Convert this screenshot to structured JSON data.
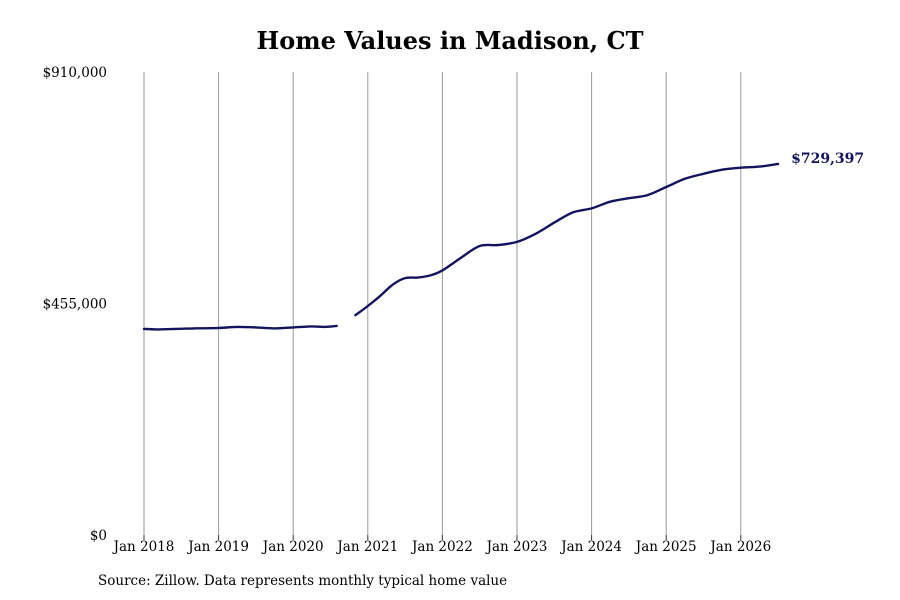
{
  "title": "Home Values in Madison, CT",
  "source": "Source: Zillow. Data represents monthly typical home value",
  "chart_data": {
    "type": "line",
    "title": "Home Values in Madison, CT",
    "xlabel": "",
    "ylabel": "",
    "ylim": [
      0,
      910000
    ],
    "y_ticks": [
      0,
      455000,
      910000
    ],
    "y_tick_labels": [
      "$0",
      "$455,000",
      "$910,000"
    ],
    "x_ticks": [
      "2018-01",
      "2019-01",
      "2020-01",
      "2021-01",
      "2022-01",
      "2023-01",
      "2024-01",
      "2025-01",
      "2026-01"
    ],
    "x_tick_labels": [
      "Jan 2018",
      "Jan 2019",
      "Jan 2020",
      "Jan 2021",
      "Jan 2022",
      "Jan 2023",
      "Jan 2024",
      "Jan 2025",
      "Jan 2026"
    ],
    "vertical_grid": true,
    "line_color": "#14145e",
    "end_label": "$729,397",
    "series": [
      {
        "segments": [
          {
            "x": [
              "2018-01",
              "2018-03",
              "2018-06",
              "2018-09",
              "2019-01",
              "2019-04",
              "2019-07",
              "2019-10",
              "2020-01",
              "2020-04",
              "2020-06",
              "2020-08"
            ],
            "y": [
              405000,
              404000,
              405000,
              406000,
              407000,
              409000,
              408000,
              406000,
              408000,
              410000,
              409000,
              411000
            ]
          },
          {
            "x": [
              "2020-11",
              "2021-01",
              "2021-03",
              "2021-05",
              "2021-07",
              "2021-09",
              "2021-11",
              "2022-01",
              "2022-04",
              "2022-07",
              "2022-10",
              "2023-01",
              "2023-04",
              "2023-07",
              "2023-10",
              "2024-01",
              "2024-04",
              "2024-07",
              "2024-10",
              "2025-01",
              "2025-04",
              "2025-07",
              "2025-10",
              "2026-01",
              "2026-04",
              "2026-07"
            ],
            "y": [
              432000,
              450000,
              470000,
              492000,
              505000,
              506000,
              510000,
              520000,
              545000,
              568000,
              570000,
              576000,
              592000,
              614000,
              634000,
              642000,
              655000,
              662000,
              668000,
              684000,
              700000,
              710000,
              718000,
              722000,
              724000,
              729397
            ]
          }
        ]
      }
    ]
  }
}
